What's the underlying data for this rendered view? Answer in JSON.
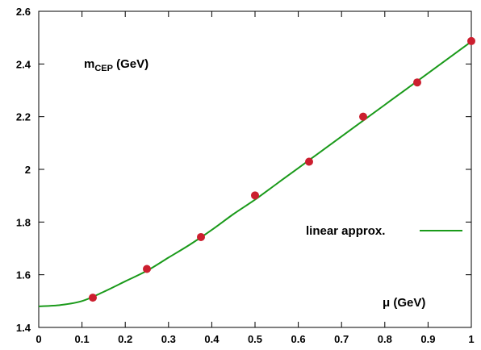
{
  "chart_data": {
    "type": "line",
    "xlim": [
      0,
      1
    ],
    "ylim": [
      1.4,
      2.6
    ],
    "x_ticks": [
      "0",
      "0.1",
      "0.2",
      "0.3",
      "0.4",
      "0.5",
      "0.6",
      "0.7",
      "0.8",
      "0.9",
      "1"
    ],
    "y_ticks": [
      "1.4",
      "1.6",
      "1.8",
      "2",
      "2.2",
      "2.4",
      "2.6"
    ],
    "grid": false,
    "ylabel_main": "m",
    "ylabel_sub": "CEP",
    "ylabel_unit": " (GeV)",
    "xlabel": "μ (GeV)",
    "legend_label": "linear approx.",
    "legend_position": "right",
    "line_color": "#1a9a1a",
    "point_color": "#cc1f2f",
    "series": [
      {
        "kind": "line",
        "x": [
          0,
          0.05,
          0.1,
          0.15,
          0.2,
          0.25,
          0.3,
          0.35,
          0.4,
          0.45,
          0.5,
          0.55,
          0.6,
          0.65,
          0.7,
          0.75,
          0.8,
          0.85,
          0.9,
          0.95,
          1.0
        ],
        "y": [
          1.48,
          1.485,
          1.5,
          1.535,
          1.575,
          1.615,
          1.665,
          1.715,
          1.77,
          1.83,
          1.885,
          1.945,
          2.005,
          2.065,
          2.125,
          2.185,
          2.245,
          2.305,
          2.365,
          2.425,
          2.485
        ]
      },
      {
        "kind": "scatter",
        "x": [
          0.125,
          0.25,
          0.375,
          0.5,
          0.625,
          0.75,
          0.875,
          1.0
        ],
        "y": [
          1.513,
          1.622,
          1.743,
          1.901,
          2.029,
          2.2,
          2.33,
          2.487
        ]
      }
    ]
  }
}
